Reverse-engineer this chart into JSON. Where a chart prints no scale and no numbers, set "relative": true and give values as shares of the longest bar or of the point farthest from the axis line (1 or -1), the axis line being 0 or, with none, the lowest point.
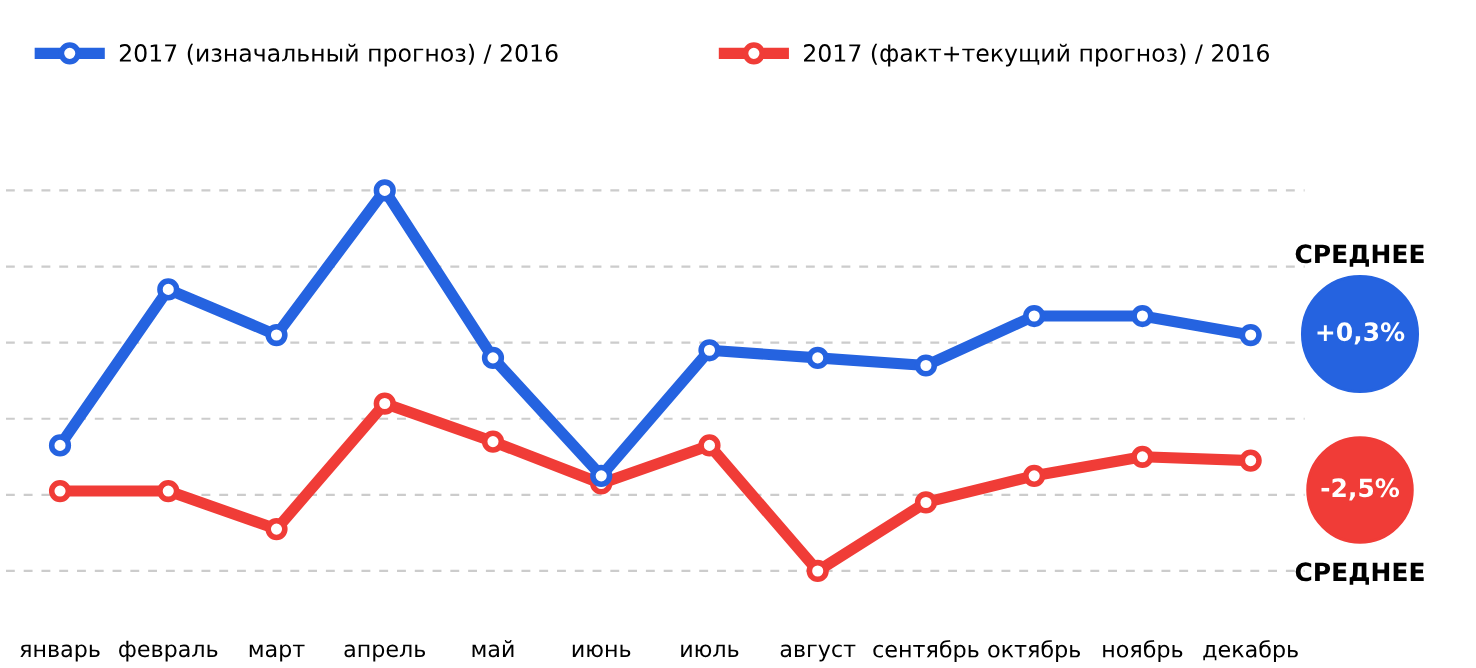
{
  "chart_data": {
    "type": "line",
    "relative": true,
    "categories": [
      "январь",
      "февраль",
      "март",
      "апрель",
      "май",
      "июнь",
      "июль",
      "август",
      "сентябрь",
      "октябрь",
      "ноябрь",
      "декабрь"
    ],
    "series": [
      {
        "name": "2017 (изначальный прогноз) / 2016",
        "color": "#2563e0",
        "values": [
          0.33,
          0.74,
          0.62,
          1,
          0.56,
          0.25,
          0.58,
          0.56,
          0.54,
          0.67,
          0.67,
          0.62
        ]
      },
      {
        "name": "2017 (факт+текущий прогноз) / 2016",
        "color": "#f03c37",
        "values": [
          0.21,
          0.21,
          0.11,
          0.44,
          0.34,
          0.23,
          0.33,
          0,
          0.18,
          0.25,
          0.3,
          0.29
        ]
      }
    ],
    "annotations": [
      "СРЕДНЕЕ",
      "+0,3%",
      "-2,5%",
      "СРЕДНЕЕ"
    ],
    "grid": "y",
    "legend": "top",
    "marker": "circle",
    "line_style": "solid"
  }
}
